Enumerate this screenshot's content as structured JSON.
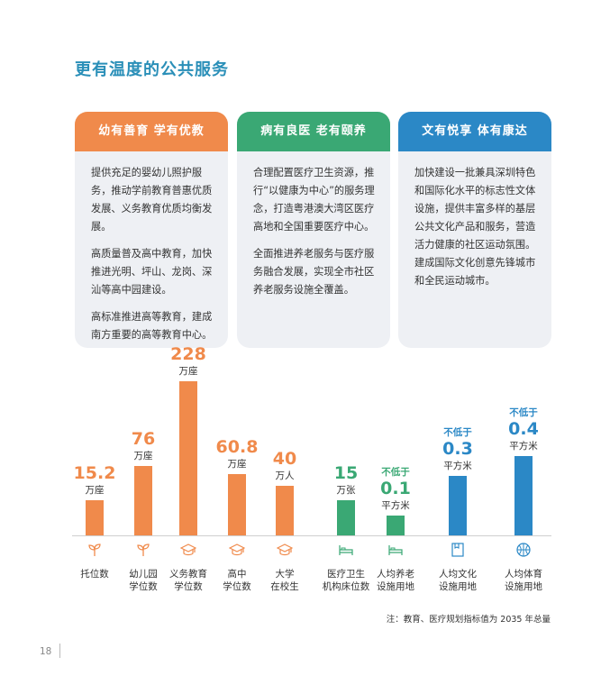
{
  "page_title": "更有温度的公共服务",
  "colors": {
    "orange": "#f08a4b",
    "green": "#3aa874",
    "blue": "#2b88c6",
    "title": "#2a8fb8"
  },
  "cards": [
    {
      "header": "幼有善育  学有优教",
      "paragraphs": [
        "提供充足的婴幼儿照护服务，推动学前教育普惠优质发展、义务教育优质均衡发展。",
        "高质量普及高中教育，加快推进光明、坪山、龙岗、深汕等高中园建设。",
        "高标准推进高等教育，建成南方重要的高等教育中心。"
      ]
    },
    {
      "header": "病有良医  老有颐养",
      "paragraphs": [
        "合理配置医疗卫生资源，推行“以健康为中心”的服务理念，打造粤港澳大湾区医疗高地和全国重要医疗中心。",
        "全面推进养老服务与医疗服务融合发展，实现全市社区养老服务设施全覆盖。"
      ]
    },
    {
      "header": "文有悦享  体有康达",
      "paragraphs": [
        "加快建设一批兼具深圳特色和国际化水平的标志性文体设施，提供丰富多样的基层公共文化产品和服务，营造活力健康的社区运动氛围。建成国际文化创意先锋城市和全民运动城市。"
      ]
    }
  ],
  "chart_data": {
    "type": "bar",
    "title": "",
    "categories": [
      "托位数",
      "幼儿园学位数",
      "义务教育学位数",
      "高中学位数",
      "大学在校生",
      "医疗卫生机构床位数",
      "人均养老设施用地",
      "人均文化设施用地",
      "人均体育设施用地"
    ],
    "values": [
      15.2,
      76,
      228,
      60.8,
      40,
      15,
      0.1,
      0.3,
      0.4
    ],
    "value_labels": [
      "15.2",
      "76",
      "228",
      "60.8",
      "40",
      "15",
      "0.1",
      "0.3",
      "0.4"
    ],
    "prefixes": [
      "",
      "",
      "",
      "",
      "",
      "",
      "不低于",
      "不低于",
      "不低于"
    ],
    "units": [
      "万座",
      "万座",
      "万座",
      "万座",
      "万人",
      "万张",
      "平方米",
      "平方米",
      "平方米"
    ],
    "label_lines": [
      [
        "托位数"
      ],
      [
        "幼儿园",
        "学位数"
      ],
      [
        "义务教育",
        "学位数"
      ],
      [
        "高中",
        "学位数"
      ],
      [
        "大学",
        "在校生"
      ],
      [
        "医疗卫生",
        "机构床位数"
      ],
      [
        "人均养老",
        "设施用地"
      ],
      [
        "人均文化",
        "设施用地"
      ],
      [
        "人均体育",
        "设施用地"
      ]
    ],
    "groups": [
      "education",
      "education",
      "education",
      "education",
      "education",
      "health",
      "health",
      "culture",
      "culture"
    ],
    "icons": [
      "sprout-icon",
      "sprout-icon",
      "graduation-cap-icon",
      "graduation-cap-icon",
      "graduation-cap-icon",
      "bed-icon",
      "bed-icon",
      "book-icon",
      "basketball-icon"
    ],
    "xlabel": "",
    "ylabel": ""
  },
  "note": "注：教育、医疗规划指标值为 2035 年总量",
  "page_number": "18"
}
